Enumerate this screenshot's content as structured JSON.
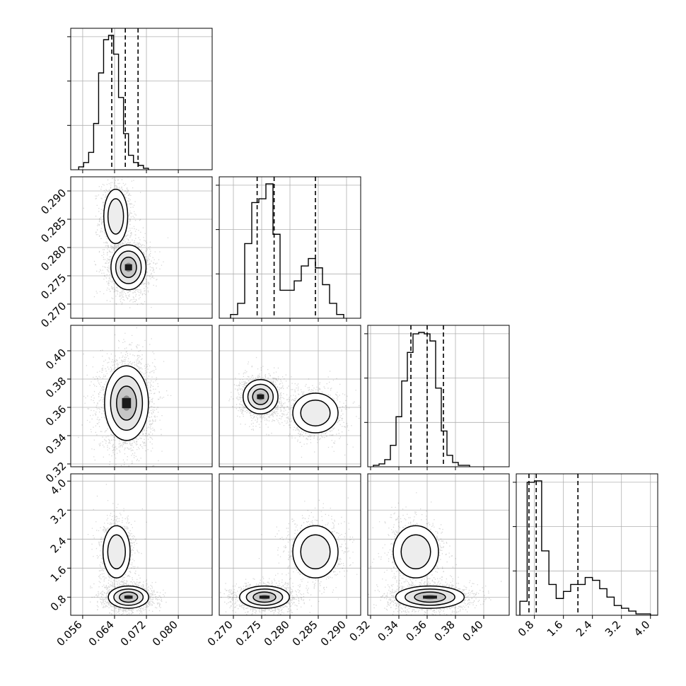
{
  "chart_data": {
    "type": "corner",
    "description_kind": "corner plot of 4 parameters with 1D histograms on the diagonal and 2D density/contours below",
    "grid": true,
    "colors": {
      "line": "#000000",
      "grid": "#b0b0b0",
      "points": "#000000"
    },
    "parameters": [
      {
        "range": [
          0.053,
          0.0885
        ],
        "ticks": [
          0.056,
          0.064,
          0.072,
          0.08
        ],
        "tick_labels": [
          "0.056",
          "0.064",
          "0.072",
          "0.080"
        ],
        "quantiles": [
          0.0633,
          0.0667,
          0.0699
        ],
        "hist": {
          "edges_start": 0.055,
          "bin_width": 0.00125,
          "counts": [
            2,
            5,
            12,
            32,
            67,
            90,
            93,
            80,
            50,
            25,
            10,
            5,
            3,
            1
          ]
        }
      },
      {
        "range": [
          0.2675,
          0.2925
        ],
        "ticks": [
          0.27,
          0.275,
          0.28,
          0.285,
          0.29
        ],
        "tick_labels": [
          "0.270",
          "0.275",
          "0.280",
          "0.285",
          "0.290"
        ],
        "quantiles": [
          0.2742,
          0.2772,
          0.2845
        ],
        "hist": {
          "edges_start": 0.2695,
          "bin_width": 0.00125,
          "counts": [
            2,
            8,
            40,
            62,
            64,
            72,
            45,
            15,
            15,
            20,
            28,
            32,
            27,
            18,
            8,
            2
          ]
        }
      },
      {
        "range": [
          0.318,
          0.418
        ],
        "ticks": [
          0.32,
          0.34,
          0.36,
          0.38,
          0.4
        ],
        "tick_labels": [
          "0.32",
          "0.34",
          "0.36",
          "0.38",
          "0.40"
        ],
        "quantiles": [
          0.3485,
          0.36,
          0.3715
        ],
        "hist": {
          "edges_start": 0.322,
          "bin_width": 0.004,
          "counts": [
            1,
            2,
            5,
            15,
            35,
            60,
            80,
            93,
            94,
            93,
            88,
            55,
            25,
            8,
            3,
            1,
            1
          ]
        }
      },
      {
        "range": [
          0.3,
          4.2
        ],
        "ticks": [
          0.8,
          1.6,
          2.4,
          3.2,
          4.0
        ],
        "tick_labels": [
          "0.8",
          "1.6",
          "2.4",
          "3.2",
          "4.0"
        ],
        "quantiles": [
          0.65,
          0.85,
          2.0
        ],
        "hist": {
          "edges_start": 0.4,
          "bin_width": 0.2,
          "counts": [
            10,
            95,
            96,
            46,
            22,
            12,
            17,
            22,
            22,
            27,
            25,
            19,
            13,
            7,
            5,
            3,
            1,
            1,
            0
          ]
        }
      }
    ],
    "pairs": [
      {
        "row": 1,
        "col": 0,
        "blobs": [
          {
            "cx": 0.0643,
            "cy": 0.2855,
            "sx": 0.0015,
            "sy": 0.0024,
            "w": 0.35
          },
          {
            "cx": 0.0675,
            "cy": 0.2765,
            "sx": 0.002,
            "sy": 0.0018,
            "w": 0.65
          }
        ]
      },
      {
        "row": 2,
        "col": 0,
        "blobs": [
          {
            "cx": 0.067,
            "cy": 0.363,
            "sx": 0.0025,
            "sy": 0.012,
            "w": 1.0
          }
        ]
      },
      {
        "row": 2,
        "col": 1,
        "blobs": [
          {
            "cx": 0.2748,
            "cy": 0.3675,
            "sx": 0.0014,
            "sy": 0.0055,
            "w": 0.65
          },
          {
            "cx": 0.2845,
            "cy": 0.356,
            "sx": 0.002,
            "sy": 0.007,
            "w": 0.35
          }
        ]
      },
      {
        "row": 3,
        "col": 0,
        "blobs": [
          {
            "cx": 0.0645,
            "cy": 2.05,
            "sx": 0.0017,
            "sy": 0.36,
            "w": 0.35
          },
          {
            "cx": 0.0675,
            "cy": 0.8,
            "sx": 0.0023,
            "sy": 0.14,
            "w": 0.65
          }
        ]
      },
      {
        "row": 3,
        "col": 1,
        "blobs": [
          {
            "cx": 0.2755,
            "cy": 0.8,
            "sx": 0.002,
            "sy": 0.14,
            "w": 0.65
          },
          {
            "cx": 0.2845,
            "cy": 2.05,
            "sx": 0.002,
            "sy": 0.36,
            "w": 0.35
          }
        ]
      },
      {
        "row": 3,
        "col": 2,
        "blobs": [
          {
            "cx": 0.352,
            "cy": 2.05,
            "sx": 0.008,
            "sy": 0.36,
            "w": 0.35
          },
          {
            "cx": 0.362,
            "cy": 0.8,
            "sx": 0.011,
            "sy": 0.14,
            "w": 0.65
          }
        ]
      }
    ]
  }
}
